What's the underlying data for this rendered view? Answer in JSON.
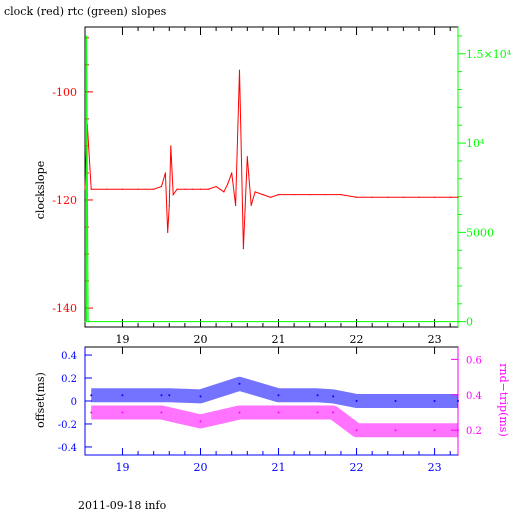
{
  "page": {
    "title": "clock (red) rtc (green) slopes",
    "footer": "2011-09-18 info"
  },
  "chart_data": [
    {
      "type": "line",
      "ylabel": "clockslope",
      "x_ticks": [
        "19",
        "20",
        "21",
        "22",
        "23"
      ],
      "xlim": [
        18.52,
        23.3
      ],
      "ylim_left": [
        -143.5,
        -88
      ],
      "y_ticks_left": [
        "-100",
        "-120",
        "-140"
      ],
      "y_ticks_right": [
        "0",
        "5000",
        "10⁴",
        "1.5×10⁴"
      ],
      "ylim_right": [
        -300,
        16500
      ],
      "colors": {
        "clock": "#ff0000",
        "rtc": "#00ff00",
        "frame": "#000000"
      },
      "series": [
        {
          "color": "#ff0000",
          "axis": "left",
          "x": [
            18.52,
            18.55,
            18.6,
            18.8,
            19.0,
            19.2,
            19.4,
            19.5,
            19.55,
            19.58,
            19.6,
            19.62,
            19.65,
            19.7,
            19.8,
            19.9,
            20.0,
            20.1,
            20.2,
            20.25,
            20.3,
            20.35,
            20.4,
            20.45,
            20.5,
            20.55,
            20.6,
            20.65,
            20.7,
            20.8,
            20.9,
            21.0,
            21.2,
            21.4,
            21.6,
            21.8,
            22.0,
            22.2,
            22.4,
            22.6,
            22.8,
            23.0,
            23.2,
            23.3
          ],
          "y": [
            -118,
            -106,
            -118,
            -118,
            -118,
            -118,
            -118,
            -117.5,
            -115,
            -126,
            -121,
            -110,
            -119,
            -118,
            -118,
            -118,
            -118,
            -118,
            -117.5,
            -118,
            -118.5,
            -117,
            -115,
            -121,
            -96,
            -129,
            -112,
            -121,
            -118.5,
            -119,
            -119.5,
            -119,
            -119,
            -119,
            -119,
            -119,
            -119.5,
            -119.5,
            -119.5,
            -119.5,
            -119.5,
            -119.5,
            -119.5,
            -119.5
          ]
        },
        {
          "color": "#00ff00",
          "axis": "right",
          "x": [
            18.52,
            18.54,
            18.54,
            18.56,
            23.3
          ],
          "y": [
            0,
            0,
            16000,
            0,
            0
          ]
        }
      ]
    },
    {
      "type": "scatter",
      "ylabel_left": "offset(ms)",
      "ylabel_right": "rnd−trip(ms)",
      "x_ticks": [
        "19",
        "20",
        "21",
        "22",
        "23"
      ],
      "xlim": [
        18.52,
        23.3
      ],
      "ylim_left": [
        -0.47,
        0.47
      ],
      "y_ticks_left": [
        "0.4",
        "0.2",
        "0",
        "-0.2",
        "-0.4"
      ],
      "ylim_right": [
        0.06,
        0.67
      ],
      "y_ticks_right": [
        "0.6",
        "0.4",
        "0.2"
      ],
      "colors": {
        "offset": "#0000ff",
        "roundtrip": "#ff00ff"
      },
      "series": [
        {
          "color": "#0000ff",
          "axis": "left",
          "x": [
            18.6,
            19.0,
            19.5,
            19.6,
            20.0,
            20.5,
            21.0,
            21.5,
            21.7,
            22.0,
            22.5,
            23.0,
            23.3
          ],
          "y": [
            0.05,
            0.05,
            0.05,
            0.05,
            0.04,
            0.15,
            0.05,
            0.05,
            0.04,
            0.0,
            0.0,
            0.0,
            0.0
          ]
        },
        {
          "color": "#ff00ff",
          "axis": "right",
          "x": [
            18.6,
            19.0,
            19.5,
            20.0,
            20.5,
            21.0,
            21.5,
            21.7,
            22.0,
            22.5,
            23.0,
            23.3
          ],
          "y": [
            0.3,
            0.3,
            0.3,
            0.25,
            0.3,
            0.3,
            0.3,
            0.3,
            0.2,
            0.2,
            0.2,
            0.2
          ]
        }
      ]
    }
  ]
}
